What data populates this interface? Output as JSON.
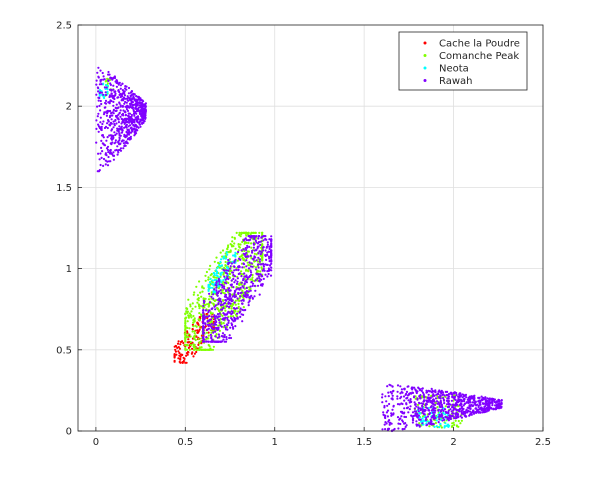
{
  "chart_data": {
    "type": "scatter",
    "title": "",
    "xlabel": "",
    "ylabel": "",
    "xlim": [
      -0.1,
      2.5
    ],
    "ylim": [
      0,
      2.5
    ],
    "x_ticks": [
      "0",
      "0.5",
      "1",
      "1.5",
      "2",
      "2.5"
    ],
    "y_ticks": [
      "0",
      "0.5",
      "1",
      "1.5",
      "2",
      "2.5"
    ],
    "grid": true,
    "legend_position": "top-right",
    "series": [
      {
        "name": "Cache la Poudre",
        "color": "#ff0000",
        "clusters": [
          {
            "x_range": [
              0.44,
              0.66
            ],
            "y_range": [
              0.42,
              0.72
            ],
            "count": 160,
            "trend": "diagonal"
          }
        ]
      },
      {
        "name": "Comanche Peak",
        "color": "#80ff00",
        "clusters": [
          {
            "x_range": [
              0.5,
              0.93
            ],
            "y_range": [
              0.5,
              1.22
            ],
            "count": 700,
            "trend": "diagonal"
          },
          {
            "x_range": [
              0.05,
              0.1
            ],
            "y_range": [
              2.05,
              2.17
            ],
            "count": 20,
            "trend": "none"
          },
          {
            "x_range": [
              1.78,
              2.05
            ],
            "y_range": [
              0.02,
              0.22
            ],
            "count": 110,
            "trend": "none"
          }
        ]
      },
      {
        "name": "Neota",
        "color": "#00ffff",
        "clusters": [
          {
            "x_range": [
              0.63,
              0.78
            ],
            "y_range": [
              0.85,
              1.1
            ],
            "count": 90,
            "trend": "diagonal"
          },
          {
            "x_range": [
              0.02,
              0.07
            ],
            "y_range": [
              2.05,
              2.15
            ],
            "count": 25,
            "trend": "none"
          },
          {
            "x_range": [
              1.8,
              1.98
            ],
            "y_range": [
              0.02,
              0.15
            ],
            "count": 70,
            "trend": "none"
          }
        ]
      },
      {
        "name": "Rawah",
        "color": "#8000ff",
        "clusters": [
          {
            "x_range": [
              0.0,
              0.28
            ],
            "y_range": [
              1.6,
              2.28
            ],
            "count": 700,
            "trend": "wedge"
          },
          {
            "x_range": [
              0.6,
              0.98
            ],
            "y_range": [
              0.55,
              1.2
            ],
            "count": 650,
            "trend": "diagonal"
          },
          {
            "x_range": [
              1.6,
              2.27
            ],
            "y_range": [
              0.0,
              0.31
            ],
            "count": 800,
            "trend": "wedge"
          }
        ]
      }
    ]
  }
}
